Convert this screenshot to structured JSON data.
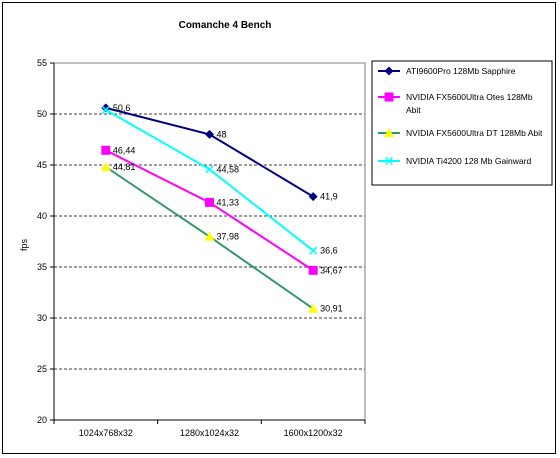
{
  "chart_data": {
    "type": "line",
    "title": "Comanche 4 Bench",
    "xlabel": "",
    "ylabel": "fps",
    "ylim": [
      20,
      55
    ],
    "ytick_step": 5,
    "categories": [
      "1024x768x32",
      "1280x1024x32",
      "1600x1200x32"
    ],
    "grid": "horizontal dashed",
    "legend_position": "right",
    "series": [
      {
        "name": "ATI9600Pro 128Mb Sapphire",
        "values": [
          50.6,
          48,
          41.9
        ],
        "labels": [
          "50,6",
          "48",
          "41,9"
        ],
        "color": "#000080",
        "marker": "diamond"
      },
      {
        "name": "NVIDIA FX5600Ultra Otes 128Mb Abit",
        "values": [
          46.44,
          41.33,
          34.67
        ],
        "labels": [
          "46,44",
          "41,33",
          "34,67"
        ],
        "color": "#ff00ff",
        "marker": "square"
      },
      {
        "name": "NVIDIA FX5600Ultra DT 128Mb Abit",
        "values": [
          44.81,
          37.98,
          30.91
        ],
        "labels": [
          "44,81",
          "37,98",
          "30,91"
        ],
        "color": "#339966",
        "marker_color": "#ffff00",
        "marker": "triangle"
      },
      {
        "name": "NVIDIA Ti4200 128 Mb Gainward",
        "values": [
          50.4,
          44.58,
          36.6
        ],
        "labels": [
          "",
          "44,58",
          "36,6"
        ],
        "color": "#00ffff",
        "marker": "x"
      }
    ]
  }
}
